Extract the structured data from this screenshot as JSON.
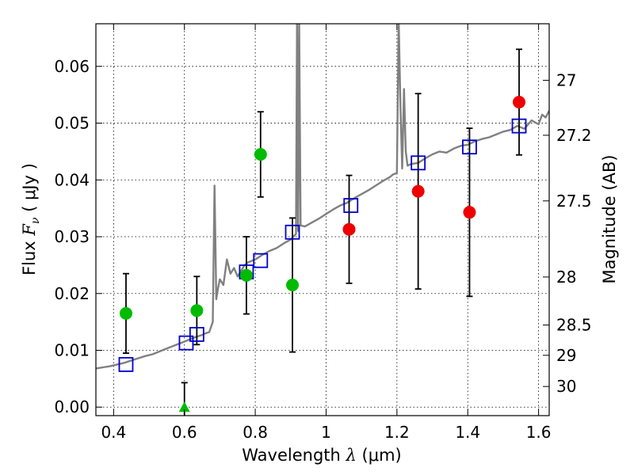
{
  "chart_data": {
    "type": "scatter",
    "xlabel": "Wavelength",
    "xlabel_symbol": "λ",
    "xlabel_unit": "(μm)",
    "ylabel": "Flux",
    "ylabel_symbol": "F",
    "ylabel_subscript": "ν",
    "ylabel_unit": "( μJy )",
    "y2label": "Magnitude (AB)",
    "xlim": [
      0.35,
      1.63
    ],
    "ylim": [
      -0.0015,
      0.0675
    ],
    "grid": true,
    "xticks": [
      {
        "value": 0.4,
        "label": "0.4"
      },
      {
        "value": 0.6,
        "label": "0.6"
      },
      {
        "value": 0.8,
        "label": "0.8"
      },
      {
        "value": 1.0,
        "label": "1"
      },
      {
        "value": 1.2,
        "label": "1.2"
      },
      {
        "value": 1.4,
        "label": "1.4"
      },
      {
        "value": 1.6,
        "label": "1.6"
      }
    ],
    "yticks": [
      {
        "value": 0.0,
        "label": "0.00"
      },
      {
        "value": 0.01,
        "label": "0.01"
      },
      {
        "value": 0.02,
        "label": "0.02"
      },
      {
        "value": 0.03,
        "label": "0.03"
      },
      {
        "value": 0.04,
        "label": "0.04"
      },
      {
        "value": 0.05,
        "label": "0.05"
      },
      {
        "value": 0.06,
        "label": "0.06"
      }
    ],
    "mag_ticks": [
      {
        "mag": 27,
        "label": "27"
      },
      {
        "mag": 27.2,
        "label": "27.2"
      },
      {
        "mag": 27.5,
        "label": "27.5"
      },
      {
        "mag": 28,
        "label": "28"
      },
      {
        "mag": 28.5,
        "label": "28.5"
      },
      {
        "mag": 29,
        "label": "29"
      },
      {
        "mag": 30,
        "label": "30"
      }
    ],
    "colors": {
      "model": "#808080",
      "model_points": "#0000cc",
      "optical_obs": "#00bb00",
      "nir_obs": "#ee0000",
      "errorbar": "#000000"
    },
    "model_spectrum": {
      "x": [
        0.35,
        0.37,
        0.39,
        0.41,
        0.43,
        0.45,
        0.47,
        0.49,
        0.51,
        0.53,
        0.55,
        0.57,
        0.59,
        0.61,
        0.63,
        0.65,
        0.66,
        0.67,
        0.68,
        0.685,
        0.69,
        0.695,
        0.7,
        0.71,
        0.72,
        0.73,
        0.74,
        0.75,
        0.76,
        0.77,
        0.78,
        0.8,
        0.82,
        0.84,
        0.86,
        0.88,
        0.9,
        0.915,
        0.918,
        0.921,
        0.924,
        0.928,
        0.94,
        0.96,
        0.98,
        1.0,
        1.02,
        1.04,
        1.06,
        1.08,
        1.1,
        1.12,
        1.14,
        1.16,
        1.18,
        1.19,
        1.2,
        1.205,
        1.21,
        1.215,
        1.22,
        1.225,
        1.23,
        1.24,
        1.26,
        1.28,
        1.3,
        1.32,
        1.34,
        1.36,
        1.38,
        1.4,
        1.42,
        1.44,
        1.46,
        1.48,
        1.5,
        1.52,
        1.54,
        1.56,
        1.58,
        1.6,
        1.61,
        1.62,
        1.63
      ],
      "y": [
        0.0068,
        0.007,
        0.0072,
        0.0075,
        0.0078,
        0.0082,
        0.0086,
        0.009,
        0.0093,
        0.0098,
        0.0103,
        0.0108,
        0.0113,
        0.0118,
        0.0123,
        0.0127,
        0.013,
        0.0132,
        0.015,
        0.039,
        0.019,
        0.021,
        0.0225,
        0.0215,
        0.026,
        0.0235,
        0.0245,
        0.023,
        0.024,
        0.025,
        0.0255,
        0.026,
        0.0268,
        0.0275,
        0.028,
        0.0288,
        0.0295,
        0.0305,
        0.068,
        0.031,
        0.068,
        0.032,
        0.0318,
        0.0325,
        0.0332,
        0.034,
        0.0348,
        0.0355,
        0.036,
        0.0368,
        0.0375,
        0.0382,
        0.039,
        0.0398,
        0.0405,
        0.041,
        0.0412,
        0.068,
        0.053,
        0.042,
        0.056,
        0.045,
        0.0425,
        0.0428,
        0.043,
        0.0438,
        0.0445,
        0.045,
        0.0448,
        0.0455,
        0.046,
        0.0462,
        0.0468,
        0.0472,
        0.0475,
        0.048,
        0.0485,
        0.0488,
        0.0495,
        0.049,
        0.0505,
        0.0498,
        0.0515,
        0.051,
        0.0522
      ]
    },
    "model_points": {
      "x": [
        0.435,
        0.605,
        0.635,
        0.775,
        0.815,
        0.905,
        1.07,
        1.26,
        1.405,
        1.545
      ],
      "y": [
        0.0075,
        0.0113,
        0.0128,
        0.0238,
        0.0258,
        0.0308,
        0.0355,
        0.043,
        0.0458,
        0.0495
      ]
    },
    "optical_obs": {
      "x": [
        0.435,
        0.635,
        0.775,
        0.815,
        0.905
      ],
      "y": [
        0.0165,
        0.017,
        0.0232,
        0.0445,
        0.0215
      ],
      "yerr": [
        0.007,
        0.006,
        0.0068,
        0.0075,
        0.0118
      ]
    },
    "optical_upper_limit": {
      "x": 0.6,
      "y": 0.0,
      "yerr": 0.0043
    },
    "nir_obs": {
      "x": [
        1.065,
        1.26,
        1.405,
        1.545
      ],
      "y": [
        0.0313,
        0.038,
        0.0343,
        0.0537
      ],
      "yerr": [
        0.0095,
        0.0172,
        0.0148,
        0.0093
      ]
    }
  }
}
